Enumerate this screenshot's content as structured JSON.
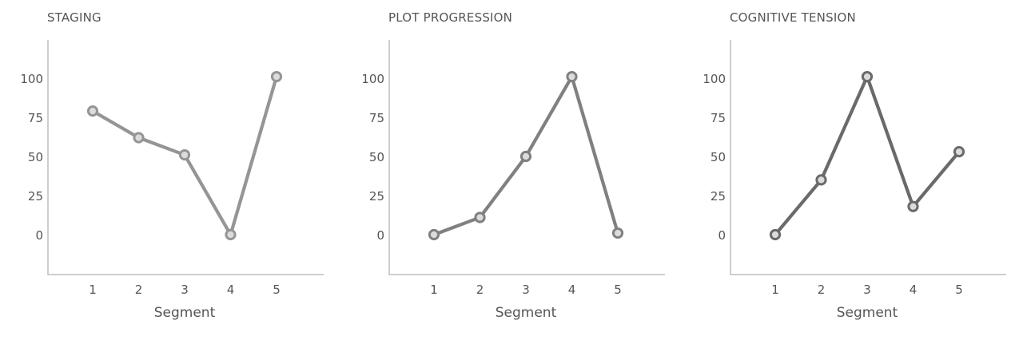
{
  "chart_data": [
    {
      "type": "line",
      "title": "STAGING",
      "xlabel": "Segment",
      "ylabel": "",
      "categories": [
        "1",
        "2",
        "3",
        "4",
        "5"
      ],
      "values": [
        79,
        62,
        51,
        0,
        101
      ],
      "y_ticks": [
        "100",
        "75",
        "50",
        "25",
        "0"
      ],
      "ylim": [
        -25,
        125
      ],
      "grid": false,
      "color": "#959595"
    },
    {
      "type": "line",
      "title": "PLOT PROGRESSION",
      "xlabel": "Segment",
      "ylabel": "",
      "categories": [
        "1",
        "2",
        "3",
        "4",
        "5"
      ],
      "values": [
        0,
        11,
        50,
        101,
        1
      ],
      "y_ticks": [
        "100",
        "75",
        "50",
        "25",
        "0"
      ],
      "ylim": [
        -25,
        125
      ],
      "grid": false,
      "color": "#808080"
    },
    {
      "type": "line",
      "title": "COGNITIVE TENSION",
      "xlabel": "Segment",
      "ylabel": "",
      "categories": [
        "1",
        "2",
        "3",
        "4",
        "5"
      ],
      "values": [
        0,
        35,
        101,
        18,
        53
      ],
      "y_ticks": [
        "100",
        "75",
        "50",
        "25",
        "0"
      ],
      "ylim": [
        -25,
        125
      ],
      "grid": false,
      "color": "#6a6a6a"
    }
  ]
}
